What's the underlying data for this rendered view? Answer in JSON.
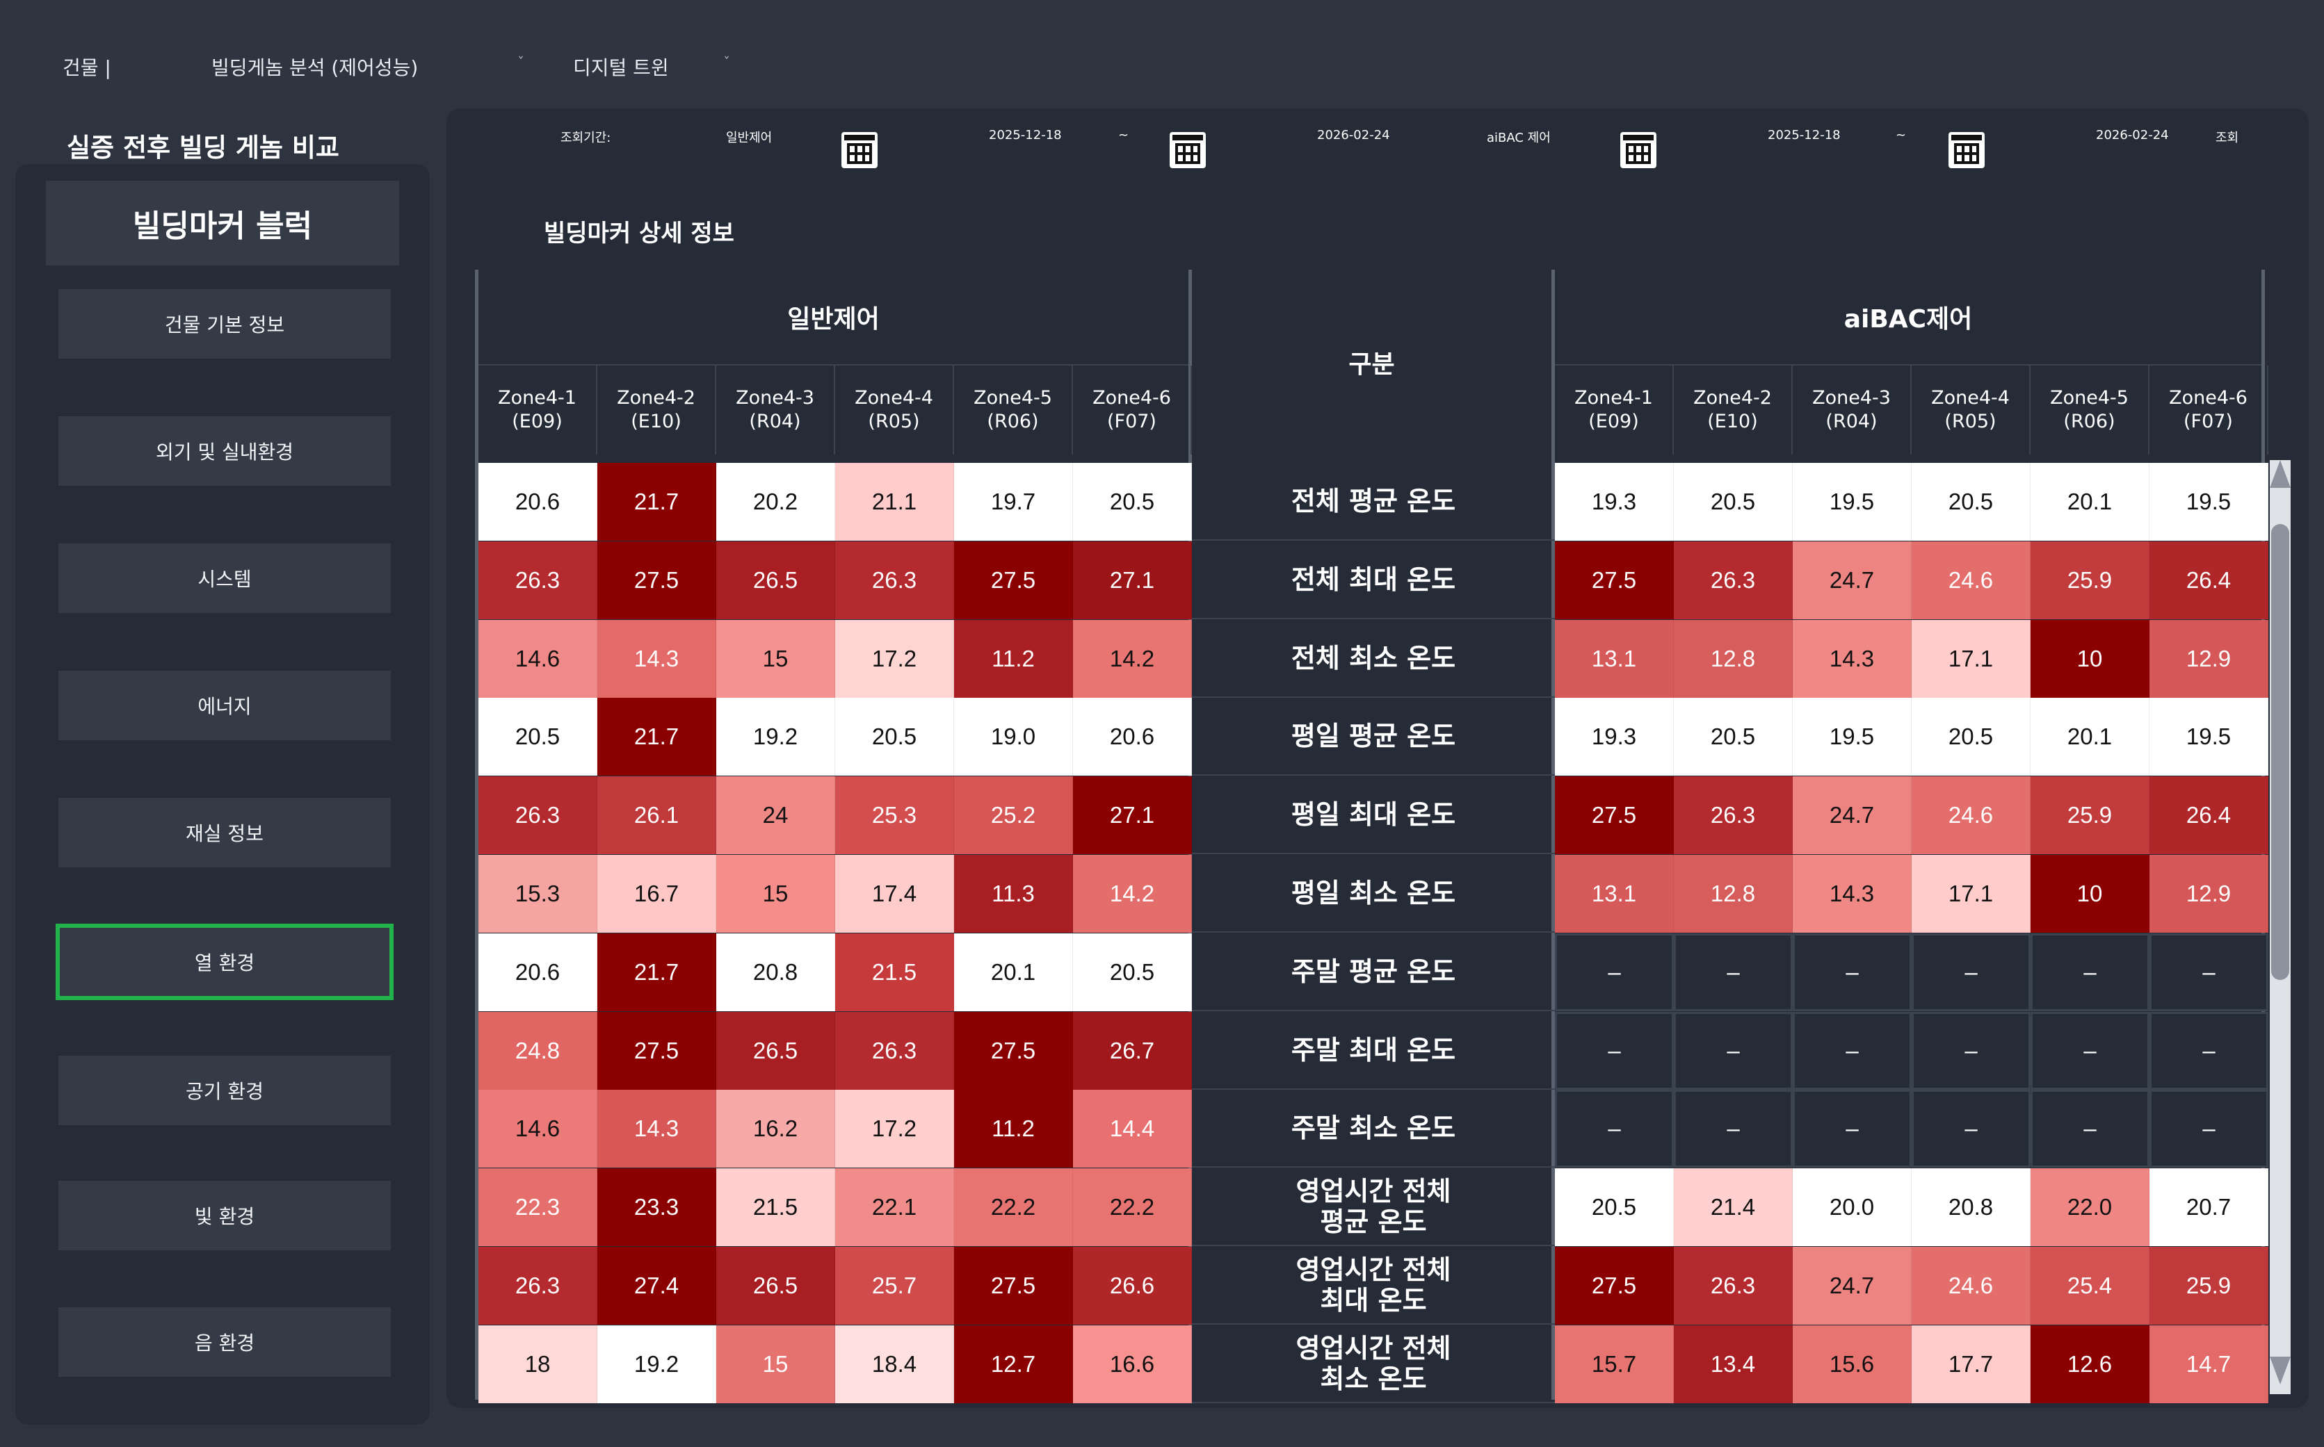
{
  "nav": {
    "building": "건물 |",
    "genome": "빌딩게놈 분석 (제어성능)",
    "genome_caret": "ˇ",
    "twin": "디지털 트윈",
    "twin_caret": "ˇ"
  },
  "page_title": "실증 전후 빌딩 게놈 비교",
  "sidebar": {
    "block_title": "빌딩마커 블럭",
    "items": [
      {
        "label": "건물 기본 정보"
      },
      {
        "label": "외기 및 실내환경"
      },
      {
        "label": "시스템"
      },
      {
        "label": "에너지"
      },
      {
        "label": "재실 정보"
      },
      {
        "label": "열 환경",
        "active": true
      },
      {
        "label": "공기 환경"
      },
      {
        "label": "빛 환경"
      },
      {
        "label": "음 환경"
      }
    ]
  },
  "filter": {
    "period_label": "조회기간:",
    "general_label": "일반제어",
    "general_start": "2025-12-18",
    "sep1": "~",
    "general_end": "2026-02-24",
    "aibac_label": "aiBAC 제어",
    "aibac_start": "2025-12-18",
    "sep2": "~",
    "aibac_end": "2026-02-24",
    "search": "조회"
  },
  "section_title": "빌딩마커 상세 정보",
  "table": {
    "group_left": "일반제어",
    "group_center": "구분",
    "group_right": "aiBAC제어",
    "zones": [
      {
        "name": "Zone4-1",
        "code": "(E09)"
      },
      {
        "name": "Zone4-2",
        "code": "(E10)"
      },
      {
        "name": "Zone4-3",
        "code": "(R04)"
      },
      {
        "name": "Zone4-4",
        "code": "(R05)"
      },
      {
        "name": "Zone4-5",
        "code": "(R06)"
      },
      {
        "name": "Zone4-6",
        "code": "(F07)"
      }
    ],
    "rows": [
      {
        "label": "전체 평균 온도",
        "general": [
          "20.6",
          "21.7",
          "20.2",
          "21.1",
          "19.7",
          "20.5"
        ],
        "aibac": [
          "19.3",
          "20.5",
          "19.5",
          "20.5",
          "20.1",
          "19.5"
        ]
      },
      {
        "label": "전체 최대 온도",
        "general": [
          "26.3",
          "27.5",
          "26.5",
          "26.3",
          "27.5",
          "27.1"
        ],
        "aibac": [
          "27.5",
          "26.3",
          "24.7",
          "24.6",
          "25.9",
          "26.4"
        ]
      },
      {
        "label": "전체 최소 온도",
        "general": [
          "14.6",
          "14.3",
          "15",
          "17.2",
          "11.2",
          "14.2"
        ],
        "aibac": [
          "13.1",
          "12.8",
          "14.3",
          "17.1",
          "10",
          "12.9"
        ]
      },
      {
        "label": "평일 평균 온도",
        "general": [
          "20.5",
          "21.7",
          "19.2",
          "20.5",
          "19.0",
          "20.6"
        ],
        "aibac": [
          "19.3",
          "20.5",
          "19.5",
          "20.5",
          "20.1",
          "19.5"
        ]
      },
      {
        "label": "평일 최대 온도",
        "general": [
          "26.3",
          "26.1",
          "24",
          "25.3",
          "25.2",
          "27.1"
        ],
        "aibac": [
          "27.5",
          "26.3",
          "24.7",
          "24.6",
          "25.9",
          "26.4"
        ]
      },
      {
        "label": "평일 최소 온도",
        "general": [
          "15.3",
          "16.7",
          "15",
          "17.4",
          "11.3",
          "14.2"
        ],
        "aibac": [
          "13.1",
          "12.8",
          "14.3",
          "17.1",
          "10",
          "12.9"
        ]
      },
      {
        "label": "주말 평균 온도",
        "general": [
          "20.6",
          "21.7",
          "20.8",
          "21.5",
          "20.1",
          "20.5"
        ],
        "aibac": [
          "–",
          "–",
          "–",
          "–",
          "–",
          "–"
        ]
      },
      {
        "label": "주말 최대 온도",
        "general": [
          "24.8",
          "27.5",
          "26.5",
          "26.3",
          "27.5",
          "26.7"
        ],
        "aibac": [
          "–",
          "–",
          "–",
          "–",
          "–",
          "–"
        ]
      },
      {
        "label": "주말 최소 온도",
        "general": [
          "14.6",
          "14.3",
          "16.2",
          "17.2",
          "11.2",
          "14.4"
        ],
        "aibac": [
          "–",
          "–",
          "–",
          "–",
          "–",
          "–"
        ]
      },
      {
        "label": "영업시간 전체\n평균 온도",
        "general": [
          "22.3",
          "23.3",
          "21.5",
          "22.1",
          "22.2",
          "22.2"
        ],
        "aibac": [
          "20.5",
          "21.4",
          "20.0",
          "20.8",
          "22.0",
          "20.7"
        ]
      },
      {
        "label": "영업시간 전체\n최대 온도",
        "general": [
          "26.3",
          "27.4",
          "26.5",
          "25.7",
          "27.5",
          "26.6"
        ],
        "aibac": [
          "27.5",
          "26.3",
          "24.7",
          "24.6",
          "25.4",
          "25.9"
        ]
      },
      {
        "label": "영업시간 전체\n최소 온도",
        "general": [
          "18",
          "19.2",
          "15",
          "18.4",
          "12.7",
          "16.6"
        ],
        "aibac": [
          "15.7",
          "13.4",
          "15.6",
          "17.7",
          "12.6",
          "14.7"
        ]
      }
    ],
    "general_colors": [
      [
        "#ffffff",
        "#8b0000",
        "#ffffff",
        "#ffcccb",
        "#ffffff",
        "#ffffff"
      ],
      [
        "#b52a2e",
        "#8b0000",
        "#a81e22",
        "#b52a2e",
        "#8b0000",
        "#9a1418"
      ],
      [
        "#f08a88",
        "#e36a68",
        "#f49290",
        "#ffd5d3",
        "#a81e22",
        "#e87572"
      ],
      [
        "#ffffff",
        "#8b0000",
        "#ffffff",
        "#ffffff",
        "#ffffff",
        "#ffffff"
      ],
      [
        "#b52a2e",
        "#c0393b",
        "#f08886",
        "#d34f4f",
        "#d65656",
        "#8b0000"
      ],
      [
        "#f6a4a2",
        "#ffc8c6",
        "#f58d8b",
        "#ffcccb",
        "#a81e22",
        "#e36e6c"
      ],
      [
        "#ffffff",
        "#8b0000",
        "#ffffff",
        "#c73a3c",
        "#ffffff",
        "#ffffff"
      ],
      [
        "#e06563",
        "#8b0000",
        "#a81e22",
        "#b52a2e",
        "#8b0000",
        "#a1181c"
      ],
      [
        "#eb7a78",
        "#d75856",
        "#f7a9a7",
        "#ffcfcd",
        "#8b0000",
        "#e87070"
      ],
      [
        "#e56f6d",
        "#8b0000",
        "#ffcfce",
        "#f08d8b",
        "#e87472",
        "#e87472"
      ],
      [
        "#b52a2e",
        "#8b0000",
        "#a81e22",
        "#d04b4b",
        "#8b0000",
        "#b0272a"
      ],
      [
        "#ffd9d8",
        "#ffffff",
        "#e67270",
        "#ffe0df",
        "#8b0000",
        "#f79290"
      ]
    ],
    "aibac_colors": [
      [
        "#ffffff",
        "#ffffff",
        "#ffffff",
        "#ffffff",
        "#ffffff",
        "#ffffff"
      ],
      [
        "#8b0000",
        "#b52a2e",
        "#ee8482",
        "#e46e6c",
        "#c23b3d",
        "#b0272a"
      ],
      [
        "#d65a5a",
        "#d75c5c",
        "#f08886",
        "#ffcccb",
        "#8b0000",
        "#d55757"
      ],
      [
        "#ffffff",
        "#ffffff",
        "#ffffff",
        "#ffffff",
        "#ffffff",
        "#ffffff"
      ],
      [
        "#8b0000",
        "#b52a2e",
        "#ee8482",
        "#e46e6c",
        "#c23b3d",
        "#b0272a"
      ],
      [
        "#d65a5a",
        "#d75c5c",
        "#f08886",
        "#ffcccb",
        "#8b0000",
        "#d55757"
      ],
      [
        "dash",
        "dash",
        "dash",
        "dash",
        "dash",
        "dash"
      ],
      [
        "dash",
        "dash",
        "dash",
        "dash",
        "dash",
        "dash"
      ],
      [
        "dash",
        "dash",
        "dash",
        "dash",
        "dash",
        "dash"
      ],
      [
        "#ffffff",
        "#ffd0cf",
        "#ffffff",
        "#ffffff",
        "#ef8684",
        "#ffffff"
      ],
      [
        "#8b0000",
        "#b52a2e",
        "#ee8482",
        "#e46e6c",
        "#d45252",
        "#c03a3c"
      ],
      [
        "#e87472",
        "#a81e22",
        "#e87472",
        "#ffcccb",
        "#8b0000",
        "#e36a68"
      ]
    ]
  }
}
